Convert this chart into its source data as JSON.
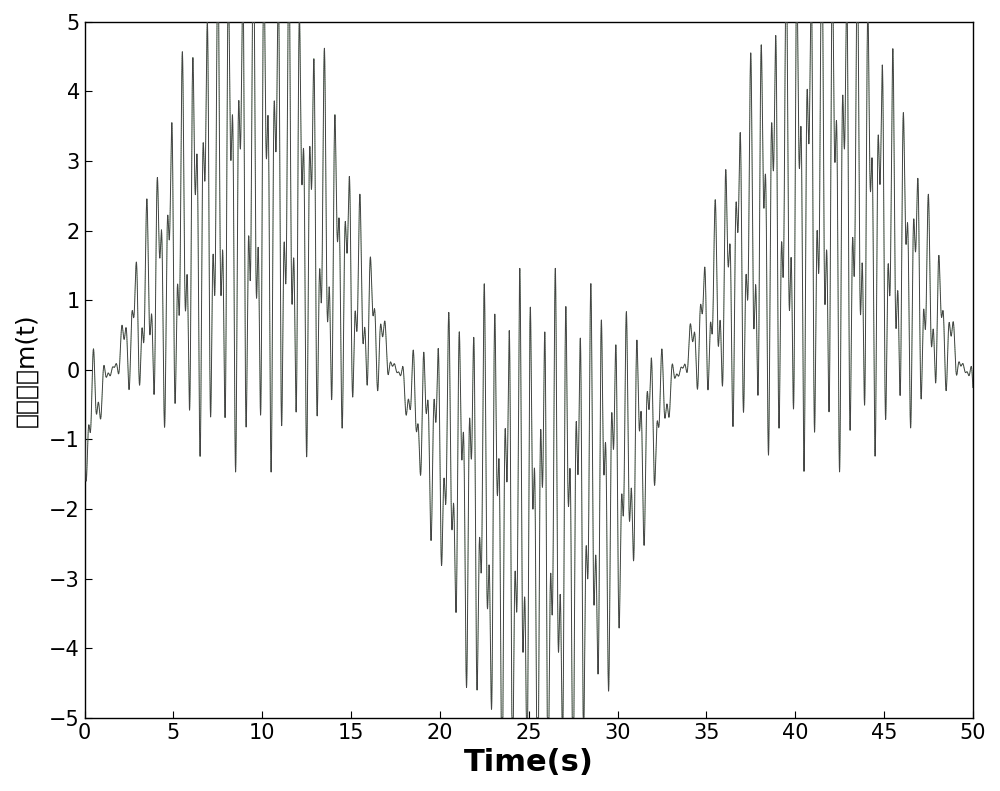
{
  "title": "",
  "xlabel": "Time(s)",
  "ylabel": "明文信号m(t)",
  "xlim": [
    0,
    50
  ],
  "ylim": [
    -5,
    5
  ],
  "xticks": [
    0,
    5,
    10,
    15,
    20,
    25,
    30,
    35,
    40,
    45,
    50
  ],
  "yticks": [
    -5,
    -4,
    -3,
    -2,
    -1,
    0,
    1,
    2,
    3,
    4,
    5
  ],
  "line_color": "#444444",
  "line_color_green": "#00aa00",
  "line_width": 0.7,
  "background_color": "#ffffff",
  "xlabel_fontsize": 22,
  "ylabel_fontsize": 18,
  "tick_fontsize": 15,
  "t_start": 0,
  "t_end": 50,
  "dt": 0.002
}
